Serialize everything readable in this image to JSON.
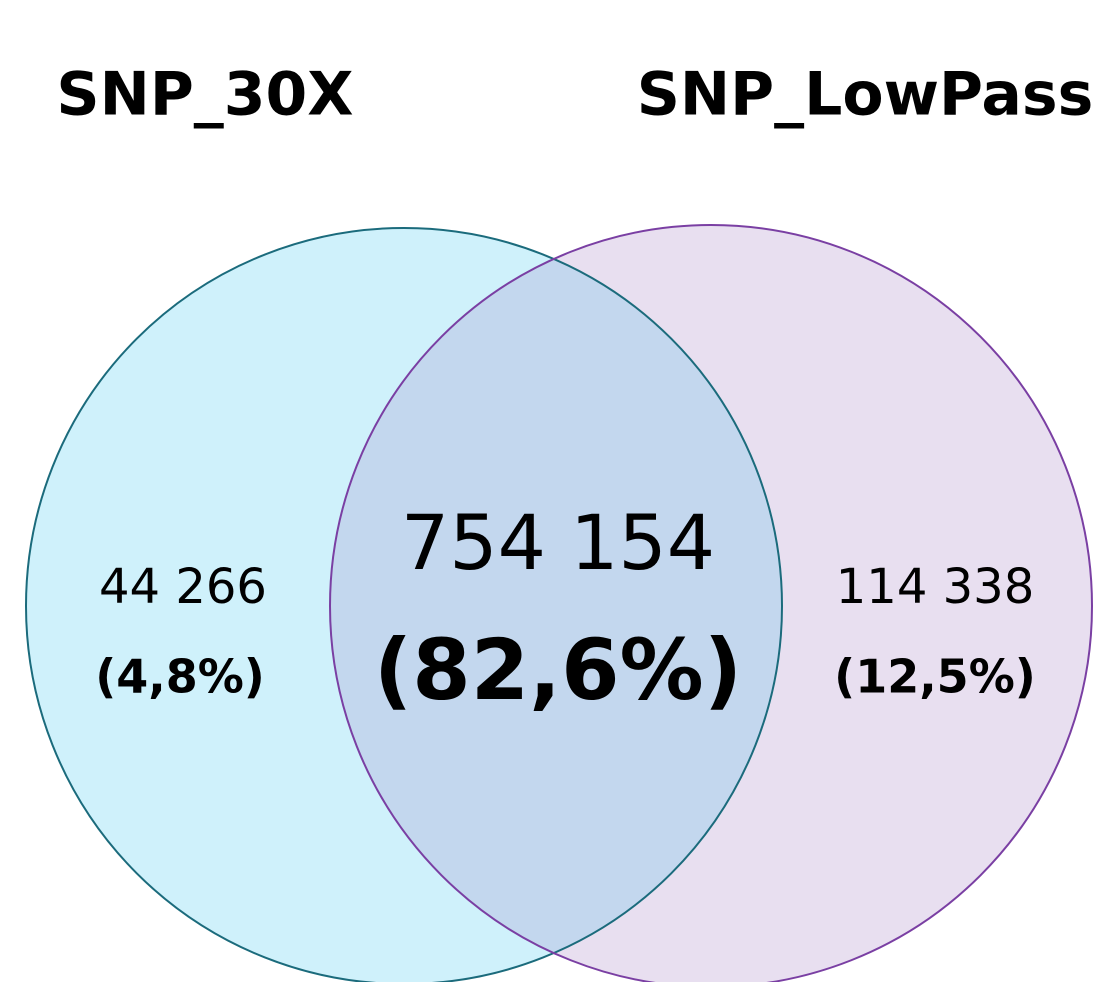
{
  "sets": [
    {
      "name": "SNP_30X"
    },
    {
      "name": "SNP_LowPass"
    }
  ],
  "regions": [
    {
      "count": "44 266",
      "percent": "(4,8%)"
    },
    {
      "count": "754 154",
      "percent": "(82,6%)"
    },
    {
      "count": "114 338",
      "percent": "(12,5%)"
    }
  ]
}
